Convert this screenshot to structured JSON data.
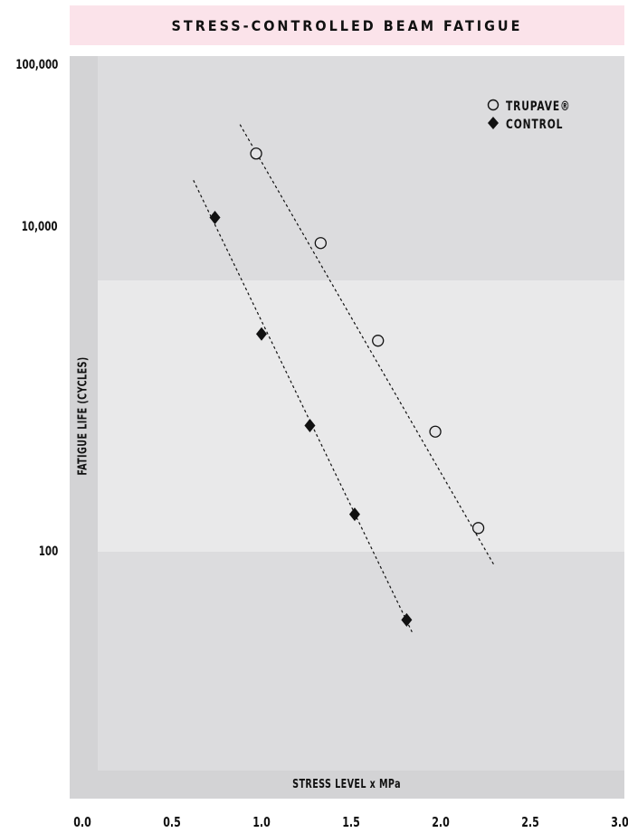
{
  "chart_data": {
    "type": "scatter",
    "title": "STRESS-CONTROLLED BEAM FATIGUE",
    "xlabel": "STRESS LEVEL x MPa",
    "ylabel": "FATIGUE LIFE (CYCLES)",
    "xlim": [
      0.0,
      3.0
    ],
    "ylim": [
      1,
      100000
    ],
    "yscale": "log",
    "x_ticks": [
      "0.0",
      "0.5",
      "1.0",
      "1.5",
      "2.0",
      "2.5",
      "3.0"
    ],
    "y_ticks": [
      {
        "value": 100000,
        "label": "100,000"
      },
      {
        "value": 10000,
        "label": "10,000"
      },
      {
        "value": 100,
        "label": "100"
      }
    ],
    "legend_position": "top-right",
    "series": [
      {
        "name": "TRUPAVE®",
        "marker": "circle-open",
        "color": "#111111",
        "points": [
          {
            "x": 0.97,
            "y": 28500
          },
          {
            "x": 1.33,
            "y": 8000
          },
          {
            "x": 1.65,
            "y": 2000
          },
          {
            "x": 1.97,
            "y": 550
          },
          {
            "x": 2.21,
            "y": 140
          }
        ],
        "trendline": {
          "x": [
            0.88,
            2.3
          ],
          "y": [
            43000,
            82
          ]
        }
      },
      {
        "name": "CONTROL",
        "marker": "diamond-filled",
        "color": "#111111",
        "points": [
          {
            "x": 0.74,
            "y": 11500
          },
          {
            "x": 1.0,
            "y": 2200
          },
          {
            "x": 1.27,
            "y": 600
          },
          {
            "x": 1.52,
            "y": 170
          },
          {
            "x": 1.81,
            "y": 38
          }
        ],
        "trendline": {
          "x": [
            0.62,
            1.84
          ],
          "y": [
            19500,
            32
          ]
        }
      }
    ],
    "bands": [
      {
        "from": 100,
        "to": 10000,
        "color": "#e9e9ea"
      }
    ]
  }
}
